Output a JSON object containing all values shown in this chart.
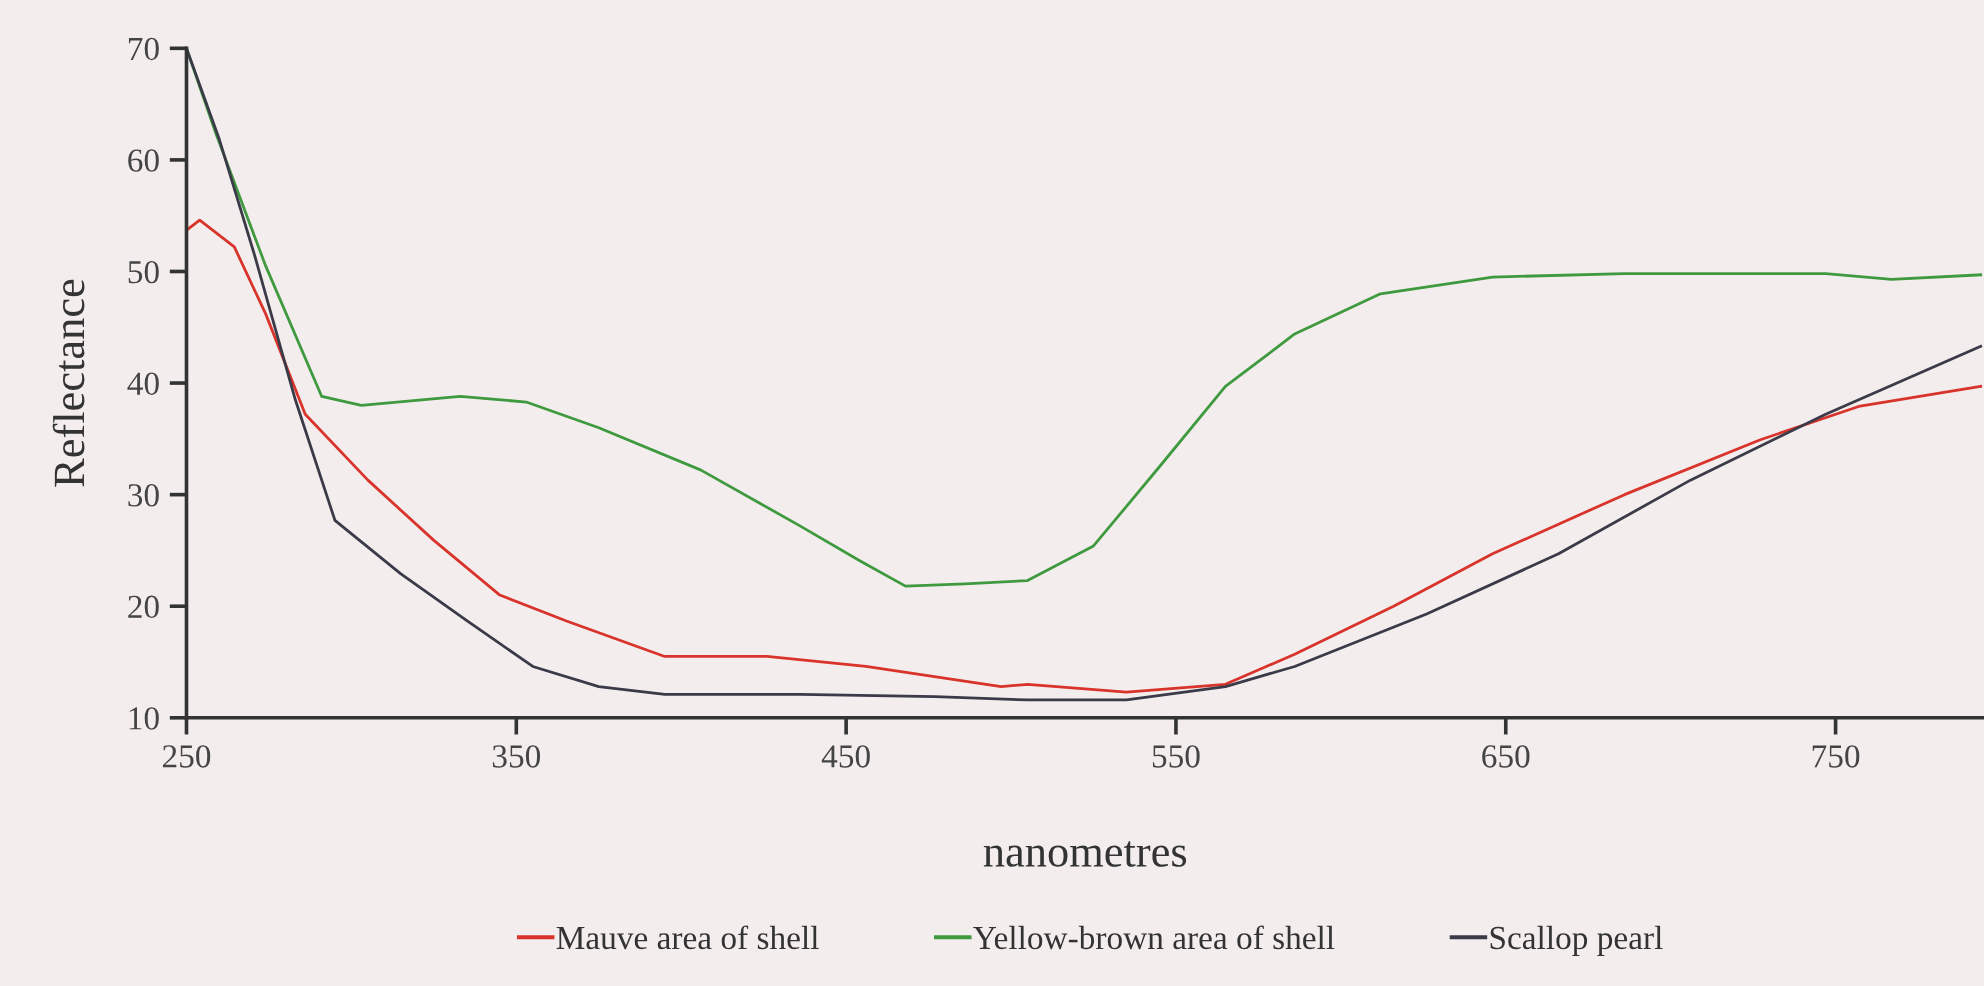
{
  "chart_data": {
    "type": "line",
    "xlabel": "nanometres",
    "ylabel": "Reflectance",
    "xlim": [
      250,
      795
    ],
    "ylim": [
      10,
      70
    ],
    "xticks": [
      250,
      350,
      450,
      550,
      650,
      750
    ],
    "yticks": [
      10,
      20,
      30,
      40,
      50,
      60,
      70
    ],
    "grid": false,
    "legend": "bottom",
    "marker": "none",
    "line_style": "solid",
    "series": [
      {
        "name": "Mauve area of shell",
        "color": "#d9342b",
        "x": [
          250,
          254,
          264.5,
          274,
          286,
          305,
          325,
          345,
          365,
          395,
          426,
          456,
          497,
          505,
          535,
          565,
          586,
          616,
          646,
          686,
          727,
          757,
          794
        ],
        "values": [
          53.7,
          54.6,
          52.2,
          46.2,
          37.2,
          31.3,
          25.9,
          21,
          18.7,
          15.5,
          15.5,
          14.6,
          12.8,
          13,
          12.3,
          13,
          15.7,
          20,
          24.7,
          30,
          34.9,
          37.9,
          39.7
        ]
      },
      {
        "name": "Yellow-brown area of shell",
        "color": "#3f9a3f",
        "x": [
          250,
          259,
          274,
          291,
          303,
          333,
          353,
          375,
          406,
          436,
          454,
          468,
          486,
          505,
          525,
          545,
          565,
          586,
          612,
          646,
          686,
          747,
          767,
          794
        ],
        "values": [
          70,
          62.3,
          50.5,
          38.8,
          38,
          38.8,
          38.3,
          36,
          32.2,
          27.2,
          24.1,
          21.8,
          22,
          22.3,
          25.4,
          32.5,
          39.7,
          44.4,
          48,
          49.5,
          49.8,
          49.8,
          49.3,
          49.7
        ]
      },
      {
        "name": "Scallop pearl",
        "color": "#3a3a48",
        "x": [
          250,
          260,
          270.6,
          283,
          295,
          315,
          335,
          355,
          375,
          395,
          436,
          477,
          505,
          535,
          565,
          586,
          626,
          666,
          706,
          747,
          794
        ],
        "values": [
          70,
          61.8,
          51.5,
          38.5,
          27.7,
          22.9,
          18.7,
          14.6,
          12.8,
          12.1,
          12.1,
          11.9,
          11.6,
          11.6,
          12.8,
          14.6,
          19.3,
          24.7,
          31.3,
          37.2,
          43.3
        ]
      }
    ]
  }
}
